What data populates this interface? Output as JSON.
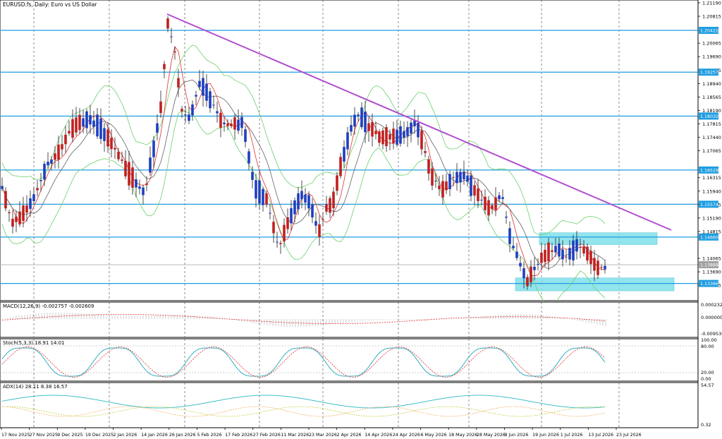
{
  "chart": {
    "title": "EURUSD.fs, Daily: Euro vs US Dollar",
    "price_axis_labels": [
      "1.21190",
      "1.20815",
      "1.20065",
      "1.19690",
      "1.19315",
      "1.18940",
      "1.18565",
      "1.18190",
      "1.17815",
      "1.17440",
      "1.17065",
      "1.16315",
      "1.15940",
      "1.15565",
      "1.15190",
      "1.14815",
      "1.14065",
      "1.13690",
      "1.13315"
    ],
    "level_labels": [
      "1.20422",
      "1.19257",
      "1.18032",
      "1.16529",
      "1.15574",
      "1.14660",
      "1.13888",
      "1.13366"
    ],
    "current_price_label": "1.13888",
    "date_labels": [
      "17 Nov 2025",
      "27 Nov 2025",
      "9 Dec 2025",
      "19 Dec 2025",
      "2 Jan 2026",
      "14 Jan 2026",
      "26 Jan 2026",
      "5 Feb 2026",
      "17 Feb 2026",
      "27 Feb 2026",
      "11 Mar 2026",
      "23 Mar 2026",
      "2 Apr 2026",
      "14 Apr 2026",
      "24 Apr 2026",
      "6 May 2026",
      "18 May 2026",
      "28 May 2026",
      "9 Jun 2026",
      "19 Jun 2026",
      "1 Jul 2026",
      "13 Jul 2026",
      "23 Jul 2026"
    ]
  },
  "macd": {
    "label": "MACD(12,26,9) -0.002757 -0.002609",
    "axis_labels": [
      "0.000232",
      "0.000000",
      "-0.009536"
    ]
  },
  "stoch": {
    "label": "Stoch(5,3,3) 18.91 14.01",
    "axis_labels": [
      "100.00",
      "80.00",
      "20.00",
      "0.00"
    ]
  },
  "adx": {
    "label": "ADX(14) 28.11 8.38 16.57",
    "axis_labels": [
      "54.57",
      "0.32"
    ]
  },
  "colors": {
    "bull": "#1e3fbf",
    "bear": "#c02020",
    "level": "#1f9de0",
    "trendline": "#b14fd0",
    "zone": "#7fe0ea",
    "bands": "#6ad06a",
    "ma_fast": "#e03030",
    "ma_slow": "#606060",
    "macd_signal": "#e03030",
    "stoch_main": "#30b0c0",
    "stoch_signal": "#e03030",
    "adx_main": "#40c0c8",
    "adx_plus": "#c0d040",
    "adx_minus": "#f0b060"
  }
}
